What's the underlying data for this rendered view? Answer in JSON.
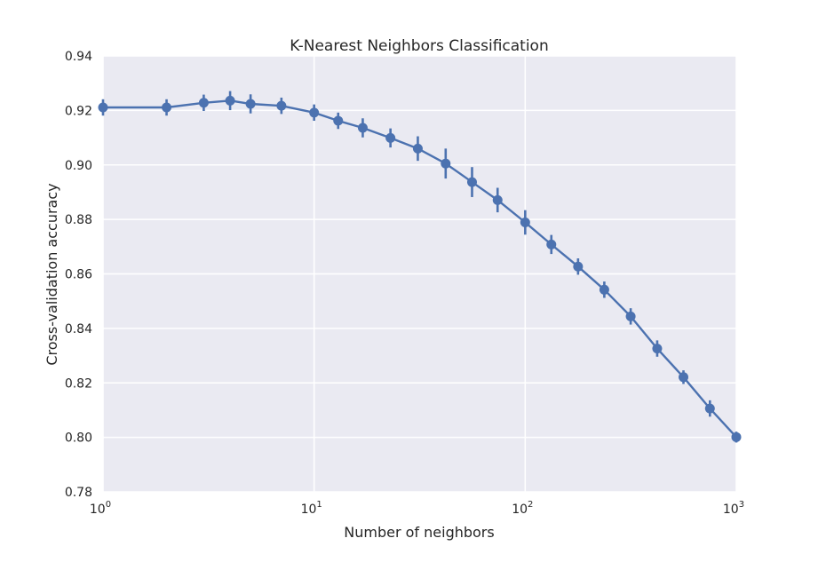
{
  "chart_data": {
    "type": "line",
    "title": "K-Nearest Neighbors Classification",
    "xlabel": "Number of neighbors",
    "ylabel": "Cross-validation accuracy",
    "xscale": "log",
    "xlim": [
      1,
      1000
    ],
    "ylim": [
      0.78,
      0.94
    ],
    "grid": true,
    "legend": "none",
    "colors": {
      "background": "#eaeaf2",
      "grid": "#ffffff",
      "series": "#4c72b0",
      "text": "#262626"
    },
    "x_ticks": [
      {
        "value": 1,
        "base": "10",
        "exp": "0"
      },
      {
        "value": 10,
        "base": "10",
        "exp": "1"
      },
      {
        "value": 100,
        "base": "10",
        "exp": "2"
      },
      {
        "value": 1000,
        "base": "10",
        "exp": "3"
      }
    ],
    "y_ticks": [
      "0.78",
      "0.80",
      "0.82",
      "0.84",
      "0.86",
      "0.88",
      "0.90",
      "0.92",
      "0.94"
    ],
    "series": [
      {
        "x": [
          1,
          2,
          3,
          4,
          5,
          7,
          10,
          13,
          17,
          23,
          31,
          42,
          56,
          74,
          100,
          133,
          178,
          237,
          316,
          422,
          562,
          750,
          1000
        ],
        "y": [
          0.9211,
          0.9211,
          0.9228,
          0.9236,
          0.9224,
          0.9217,
          0.9192,
          0.9162,
          0.9136,
          0.9099,
          0.906,
          0.9005,
          0.8937,
          0.8871,
          0.8789,
          0.8708,
          0.8627,
          0.8542,
          0.8444,
          0.8326,
          0.8221,
          0.8106,
          0.8001
        ],
        "err": [
          0.003,
          0.003,
          0.003,
          0.0035,
          0.0035,
          0.003,
          0.003,
          0.003,
          0.0035,
          0.0035,
          0.0045,
          0.0055,
          0.0055,
          0.0045,
          0.0045,
          0.0035,
          0.003,
          0.003,
          0.003,
          0.003,
          0.0025,
          0.003,
          0.002
        ]
      }
    ]
  }
}
